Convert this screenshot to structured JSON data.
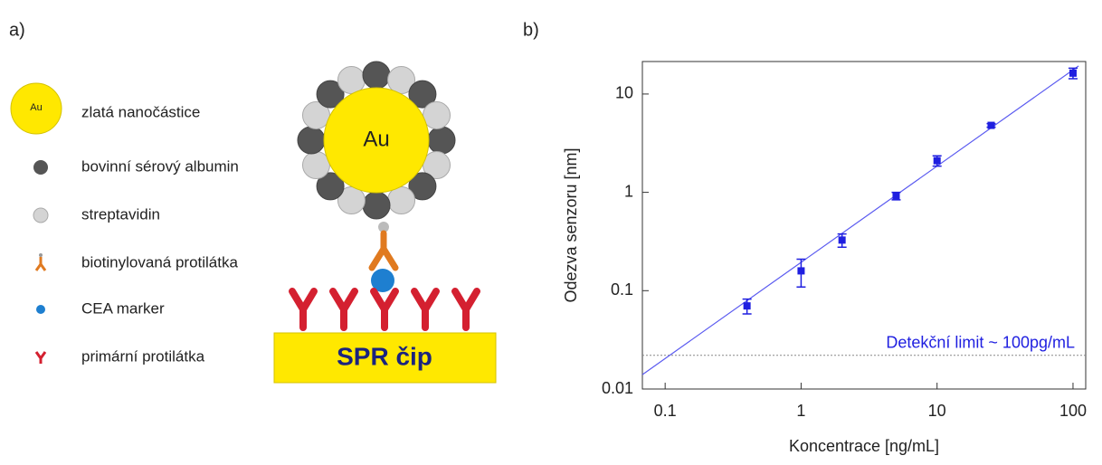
{
  "panel_labels": [
    "a)",
    "b)"
  ],
  "diagram": {
    "legend": [
      "zlatá nanočástice",
      "bovinní sérový albumin",
      "streptavidin",
      "biotinylovaná protilátka",
      "CEA marker",
      "primární protilátka"
    ],
    "legend_icon_label": "Au",
    "particle_label": "Au",
    "chip_label": "SPR čip"
  },
  "chart_data": {
    "type": "scatter",
    "x_label": "Koncentrace [ng/mL]",
    "y_label": "Odezva senzoru [nm]",
    "x": [
      0.4,
      1,
      2,
      5,
      10,
      25,
      100
    ],
    "values": [
      0.07,
      0.159,
      0.327,
      0.92,
      2.1,
      4.8,
      16.3
    ],
    "errors": [
      0.012,
      0.05,
      0.05,
      0.08,
      0.25,
      0.2,
      2
    ],
    "color": "#1f1fe0",
    "fit_line": {
      "x": [
        0.068,
        110
      ],
      "values": [
        0.014,
        19.3
      ],
      "color": "#5a5af0"
    },
    "threshold": 0.022,
    "annotation": "Detekční limit ~ 100pg/mL",
    "xlim": [
      0.068,
      124
    ],
    "ylim": [
      0.01,
      21.4
    ],
    "xticks": [
      0.1,
      1,
      10,
      100
    ],
    "yticks": [
      0.01,
      0.1,
      1,
      10
    ],
    "xscale": "log",
    "yscale": "log"
  }
}
